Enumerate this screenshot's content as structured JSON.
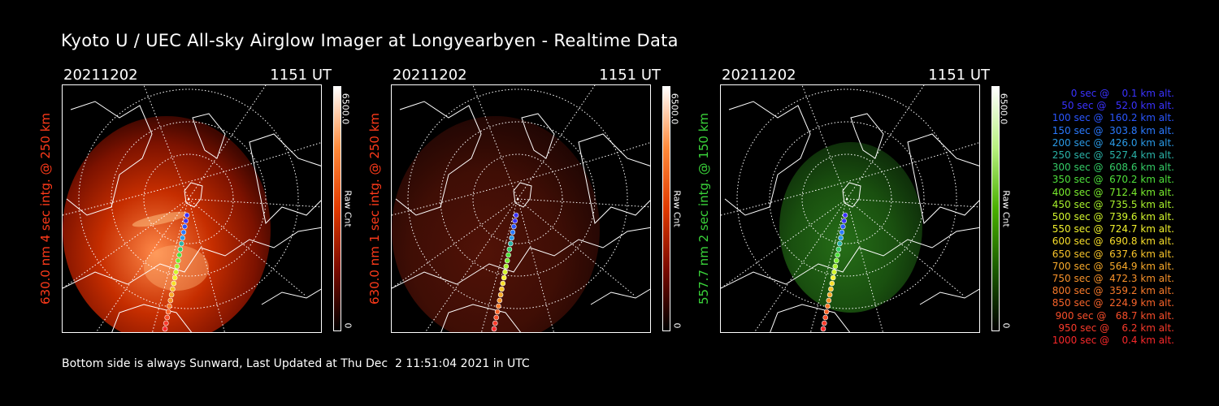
{
  "title": "Kyoto U / UEC All-sky Airglow Imager at Longyearbyen - Realtime Data",
  "footer": "Bottom side is always Sunward, Last Updated at Thu Dec  2 11:51:04 2021 in UTC",
  "panels": [
    {
      "date": "20211202",
      "ut": "1151 UT",
      "ylabel": "630.0 nm 4 sec intg. @ 250 km",
      "label_color": "#ff3a1a",
      "cmax": "6500.0",
      "cmin": "0",
      "cunit": "Raw Cnt",
      "image_tone": "red-bright"
    },
    {
      "date": "20211202",
      "ut": "1151 UT",
      "ylabel": "630.0 nm 1 sec intg. @ 250 km",
      "label_color": "#ff3a1a",
      "cmax": "6500.0",
      "cmin": "0",
      "cunit": "Raw Cnt",
      "image_tone": "red-dim"
    },
    {
      "date": "20211202",
      "ut": "1151 UT",
      "ylabel": "557.7 nm 2 sec intg. @ 150 km",
      "label_color": "#3ad43a",
      "cmax": "6500.0",
      "cmin": "0",
      "cunit": "Raw Cnt",
      "image_tone": "green"
    }
  ],
  "legend": [
    {
      "text": "0 sec @    0.1 km alt.",
      "color": "#3a32ff"
    },
    {
      "text": "50 sec @   52.0 km alt.",
      "color": "#3a32ff"
    },
    {
      "text": "100 sec @  160.2 km alt.",
      "color": "#2a56ff"
    },
    {
      "text": "150 sec @  303.8 km alt.",
      "color": "#2a7aff"
    },
    {
      "text": "200 sec @  426.0 km alt.",
      "color": "#2a9ae6"
    },
    {
      "text": "250 sec @  527.4 km alt.",
      "color": "#2ab3a8"
    },
    {
      "text": "300 sec @  608.6 km alt.",
      "color": "#34cc66"
    },
    {
      "text": "350 sec @  670.2 km alt.",
      "color": "#4ee03a"
    },
    {
      "text": "400 sec @  712.4 km alt.",
      "color": "#7aec2e"
    },
    {
      "text": "450 sec @  735.5 km alt.",
      "color": "#a8f22c"
    },
    {
      "text": "500 sec @  739.6 km alt.",
      "color": "#d2f52c"
    },
    {
      "text": "550 sec @  724.7 km alt.",
      "color": "#f2f22c"
    },
    {
      "text": "600 sec @  690.8 km alt.",
      "color": "#f8de2a"
    },
    {
      "text": "650 sec @  637.6 km alt.",
      "color": "#f8c42a"
    },
    {
      "text": "700 sec @  564.9 km alt.",
      "color": "#f8aa2a"
    },
    {
      "text": "750 sec @  472.3 km alt.",
      "color": "#f8922a"
    },
    {
      "text": "800 sec @  359.2 km alt.",
      "color": "#f87a2a"
    },
    {
      "text": "850 sec @  224.9 km alt.",
      "color": "#f8642a"
    },
    {
      "text": "900 sec @   68.7 km alt.",
      "color": "#f84e2a"
    },
    {
      "text": "950 sec @    6.2 km alt.",
      "color": "#f83a2a"
    },
    {
      "text": "1000 sec @    0.4 km alt.",
      "color": "#f8282a"
    }
  ],
  "colorbar_colors": {
    "red": [
      "#000000",
      "#7a0a00",
      "#e03a00",
      "#ff8a3a",
      "#ffffff"
    ],
    "green": [
      "#000000",
      "#1a5a00",
      "#4ab000",
      "#b8f080",
      "#ffffff"
    ]
  }
}
